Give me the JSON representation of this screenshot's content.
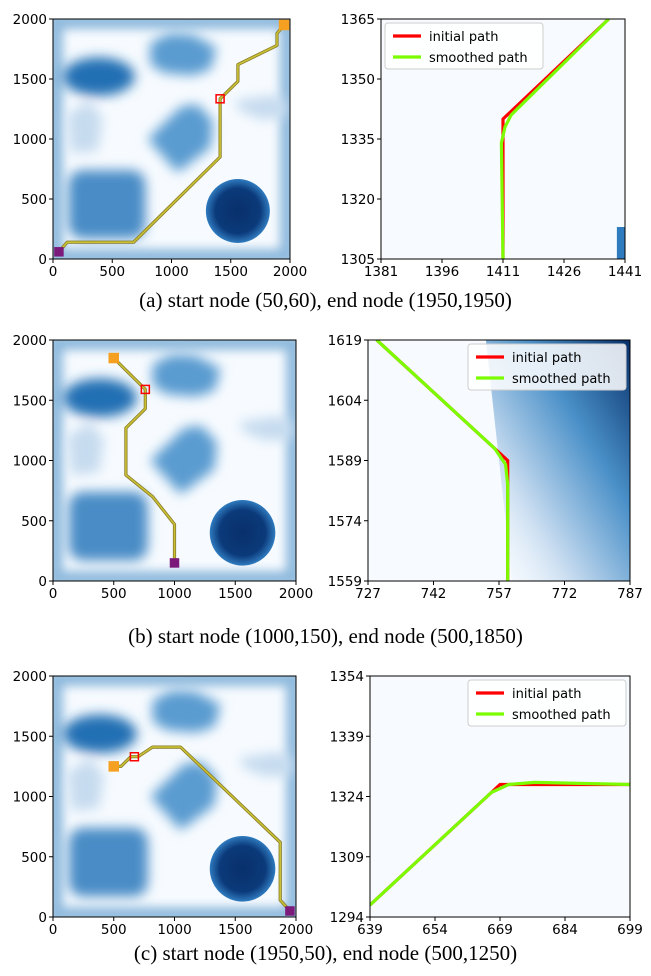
{
  "figure": {
    "captions": [
      "(a) start node (50,60), end node (1950,1950)",
      "(b) start node (1000,150), end node (500,1850)",
      "(c) start node (1950,50), end node (500,1250)"
    ]
  },
  "chart_data": [
    {
      "type": "heatmap",
      "panel": "a-map",
      "xlim": [
        0,
        2000
      ],
      "ylim": [
        0,
        2000
      ],
      "xticks": [
        0,
        500,
        1000,
        1500,
        2000
      ],
      "yticks": [
        0,
        500,
        1000,
        1500,
        2000
      ],
      "colormap": "Blues",
      "path": [
        [
          50,
          60
        ],
        [
          120,
          140
        ],
        [
          680,
          140
        ],
        [
          1410,
          850
        ],
        [
          1410,
          1335
        ],
        [
          1560,
          1480
        ],
        [
          1560,
          1620
        ],
        [
          1890,
          1780
        ],
        [
          1890,
          1880
        ],
        [
          1950,
          1950
        ]
      ],
      "start": [
        50,
        60
      ],
      "end": [
        1950,
        1950
      ],
      "marked_point": [
        1410,
        1335
      ]
    },
    {
      "type": "line",
      "panel": "a-zoom",
      "xlim": [
        1381,
        1441
      ],
      "ylim": [
        1305,
        1365
      ],
      "xticks": [
        1381,
        1396,
        1411,
        1426,
        1441
      ],
      "yticks": [
        1305,
        1320,
        1335,
        1350,
        1365
      ],
      "legend": "top-left",
      "series": [
        {
          "name": "initial path",
          "color": "#ff0000",
          "x": [
            1411,
            1411,
            1437
          ],
          "y": [
            1305,
            1340,
            1365
          ]
        },
        {
          "name": "smoothed path",
          "color": "#7cfc00",
          "x": [
            1411,
            1410.6,
            1411.5,
            1413,
            1437
          ],
          "y": [
            1305,
            1334,
            1338,
            1341,
            1365
          ]
        }
      ]
    },
    {
      "type": "heatmap",
      "panel": "b-map",
      "xlim": [
        0,
        2000
      ],
      "ylim": [
        0,
        2000
      ],
      "xticks": [
        0,
        500,
        1000,
        1500,
        2000
      ],
      "yticks": [
        0,
        500,
        1000,
        1500,
        2000
      ],
      "colormap": "Blues",
      "path": [
        [
          1000,
          150
        ],
        [
          1000,
          470
        ],
        [
          820,
          700
        ],
        [
          600,
          880
        ],
        [
          600,
          1270
        ],
        [
          760,
          1430
        ],
        [
          760,
          1590
        ],
        [
          500,
          1850
        ]
      ],
      "start": [
        1000,
        150
      ],
      "end": [
        500,
        1850
      ],
      "marked_point": [
        760,
        1590
      ]
    },
    {
      "type": "line",
      "panel": "b-zoom",
      "xlim": [
        727,
        787
      ],
      "ylim": [
        1559,
        1619
      ],
      "xticks": [
        727,
        742,
        757,
        772,
        787
      ],
      "yticks": [
        1559,
        1574,
        1589,
        1604,
        1619
      ],
      "legend": "top-right",
      "series": [
        {
          "name": "initial path",
          "color": "#ff0000",
          "x": [
            729,
            759,
            759,
            759
          ],
          "y": [
            1619,
            1589,
            1584,
            1559
          ]
        },
        {
          "name": "smoothed path",
          "color": "#7cfc00",
          "x": [
            729,
            756,
            758.5,
            759,
            759
          ],
          "y": [
            1619,
            1592,
            1588,
            1583,
            1559
          ]
        }
      ]
    },
    {
      "type": "heatmap",
      "panel": "c-map",
      "xlim": [
        0,
        2000
      ],
      "ylim": [
        0,
        2000
      ],
      "xticks": [
        0,
        500,
        1000,
        1500,
        2000
      ],
      "yticks": [
        0,
        500,
        1000,
        1500,
        2000
      ],
      "colormap": "Blues",
      "path": [
        [
          1950,
          50
        ],
        [
          1870,
          140
        ],
        [
          1870,
          620
        ],
        [
          1050,
          1410
        ],
        [
          820,
          1410
        ],
        [
          700,
          1330
        ],
        [
          640,
          1330
        ],
        [
          560,
          1250
        ],
        [
          500,
          1250
        ]
      ],
      "start": [
        1950,
        50
      ],
      "end": [
        500,
        1250
      ],
      "marked_point": [
        670,
        1330
      ]
    },
    {
      "type": "line",
      "panel": "c-zoom",
      "xlim": [
        639,
        699
      ],
      "ylim": [
        1294,
        1354
      ],
      "xticks": [
        639,
        654,
        669,
        684,
        699
      ],
      "yticks": [
        1294,
        1309,
        1324,
        1339,
        1354
      ],
      "legend": "top-right",
      "series": [
        {
          "name": "initial path",
          "color": "#ff0000",
          "x": [
            639,
            669,
            699
          ],
          "y": [
            1297,
            1327,
            1327
          ]
        },
        {
          "name": "smoothed path",
          "color": "#7cfc00",
          "x": [
            639,
            667,
            671,
            677,
            699
          ],
          "y": [
            1297,
            1325,
            1327,
            1327.5,
            1327
          ]
        }
      ]
    }
  ]
}
